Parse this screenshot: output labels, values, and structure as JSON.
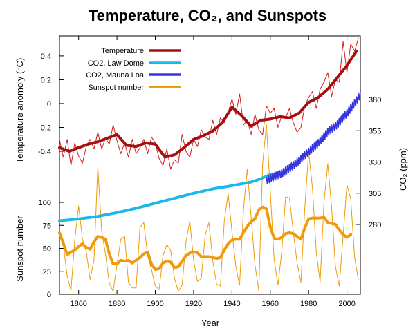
{
  "chart_data": {
    "type": "line",
    "title": "Temperature, CO₂, and Sunspots",
    "xlabel": "Year",
    "xlim": [
      1850,
      2007
    ],
    "x_ticks": [
      1860,
      1880,
      1900,
      1920,
      1940,
      1960,
      1980,
      2000
    ],
    "y_left_temperature": {
      "label": "Temperature anomoly (°C)",
      "lim": [
        -0.62,
        0.55
      ],
      "ticks": [
        "-0.4",
        "-0.2",
        "0",
        "0.2",
        "0.4"
      ]
    },
    "y_left_sunspot": {
      "label": "Sunspot number",
      "lim": [
        0,
        100
      ],
      "ticks": [
        "0",
        "25",
        "50",
        "75",
        "100"
      ]
    },
    "y_right_co2": {
      "label": "CO₂ (ppm)",
      "lim": [
        265,
        390
      ],
      "ticks": [
        "280",
        "305",
        "330",
        "355",
        "380"
      ]
    },
    "legend": {
      "placement": "top-left",
      "entries": [
        "Temperature",
        "CO2, Law Dome",
        "CO2, Mauna Loa",
        "Sunspot number"
      ]
    },
    "colors": {
      "temperature": "#a50f0f",
      "temperature_annual": "#d41a1a",
      "co2_law_dome": "#1ab8e8",
      "co2_mauna_loa": "#3535e0",
      "sunspot": "#f09a0a"
    },
    "series": [
      {
        "name": "Temperature",
        "style": "smoothed",
        "x": [
          1850,
          1855,
          1860,
          1865,
          1870,
          1875,
          1880,
          1885,
          1890,
          1895,
          1900,
          1905,
          1910,
          1915,
          1920,
          1925,
          1930,
          1935,
          1940,
          1945,
          1950,
          1955,
          1960,
          1965,
          1970,
          1975,
          1980,
          1985,
          1990,
          1995,
          2000,
          2005
        ],
        "values": [
          -0.37,
          -0.4,
          -0.37,
          -0.34,
          -0.32,
          -0.29,
          -0.26,
          -0.35,
          -0.36,
          -0.33,
          -0.34,
          -0.45,
          -0.43,
          -0.37,
          -0.3,
          -0.27,
          -0.23,
          -0.16,
          -0.03,
          -0.1,
          -0.19,
          -0.14,
          -0.13,
          -0.11,
          -0.12,
          -0.08,
          0.01,
          0.05,
          0.12,
          0.22,
          0.32,
          0.44
        ]
      },
      {
        "name": "Temperature annual",
        "style": "annual",
        "x": [
          1850,
          1852,
          1854,
          1856,
          1858,
          1860,
          1862,
          1864,
          1866,
          1868,
          1870,
          1872,
          1874,
          1876,
          1878,
          1880,
          1882,
          1884,
          1886,
          1888,
          1890,
          1892,
          1894,
          1896,
          1898,
          1900,
          1902,
          1904,
          1906,
          1908,
          1910,
          1912,
          1914,
          1916,
          1918,
          1920,
          1922,
          1924,
          1926,
          1928,
          1930,
          1932,
          1934,
          1936,
          1938,
          1940,
          1942,
          1944,
          1946,
          1948,
          1950,
          1952,
          1954,
          1956,
          1958,
          1960,
          1962,
          1964,
          1966,
          1968,
          1970,
          1972,
          1974,
          1976,
          1978,
          1980,
          1982,
          1984,
          1986,
          1988,
          1990,
          1992,
          1994,
          1996,
          1998,
          2000,
          2002,
          2004,
          2006
        ],
        "values": [
          -0.3,
          -0.45,
          -0.3,
          -0.52,
          -0.33,
          -0.44,
          -0.5,
          -0.36,
          -0.3,
          -0.38,
          -0.24,
          -0.38,
          -0.29,
          -0.34,
          -0.18,
          -0.31,
          -0.42,
          -0.33,
          -0.45,
          -0.3,
          -0.42,
          -0.37,
          -0.3,
          -0.42,
          -0.28,
          -0.33,
          -0.46,
          -0.52,
          -0.38,
          -0.55,
          -0.47,
          -0.5,
          -0.26,
          -0.4,
          -0.45,
          -0.3,
          -0.36,
          -0.22,
          -0.28,
          -0.3,
          -0.14,
          -0.26,
          -0.12,
          -0.16,
          -0.08,
          0.04,
          -0.09,
          0.08,
          -0.18,
          -0.14,
          -0.26,
          -0.09,
          -0.22,
          -0.26,
          -0.02,
          -0.08,
          -0.04,
          -0.2,
          -0.1,
          -0.12,
          -0.04,
          -0.16,
          -0.24,
          -0.2,
          -0.02,
          0.05,
          0.1,
          -0.04,
          0.12,
          0.18,
          0.26,
          0.06,
          0.2,
          0.18,
          0.52,
          0.26,
          0.5,
          0.44,
          0.55
        ]
      },
      {
        "name": "CO2, Law Dome",
        "axis": "co2",
        "x": [
          1850,
          1860,
          1870,
          1880,
          1890,
          1900,
          1910,
          1920,
          1930,
          1940,
          1950,
          1955,
          1960
        ],
        "values": [
          283,
          284.5,
          286.5,
          289.5,
          293,
          297,
          301,
          305,
          308.5,
          311,
          314,
          316.5,
          320
        ]
      },
      {
        "name": "CO2, Mauna Loa",
        "axis": "co2",
        "x": [
          1958,
          1960,
          1965,
          1970,
          1975,
          1980,
          1985,
          1990,
          1995,
          2000,
          2005,
          2007
        ],
        "values": [
          315,
          317,
          320,
          325,
          331,
          338,
          345,
          354,
          360,
          369,
          379,
          384
        ]
      },
      {
        "name": "Sunspot number",
        "axis": "sunspot",
        "style": "smoothed",
        "x": [
          1850,
          1852,
          1854,
          1856,
          1858,
          1860,
          1862,
          1864,
          1866,
          1868,
          1870,
          1872,
          1874,
          1876,
          1878,
          1880,
          1882,
          1884,
          1886,
          1888,
          1890,
          1892,
          1894,
          1896,
          1898,
          1900,
          1902,
          1904,
          1906,
          1908,
          1910,
          1912,
          1914,
          1916,
          1918,
          1920,
          1922,
          1924,
          1926,
          1928,
          1930,
          1932,
          1934,
          1936,
          1938,
          1940,
          1942,
          1944,
          1946,
          1948,
          1950,
          1952,
          1954,
          1956,
          1958,
          1960,
          1962,
          1964,
          1966,
          1968,
          1970,
          1972,
          1974,
          1976,
          1978,
          1980,
          1982,
          1984,
          1986,
          1988,
          1990,
          1992,
          1994,
          1996,
          1998,
          2000,
          2002
        ],
        "values": [
          67,
          56,
          43,
          46,
          48,
          52,
          55,
          51,
          49,
          57,
          63,
          62,
          60,
          44,
          33,
          33,
          37,
          36,
          37,
          34,
          37,
          40,
          44,
          46,
          33,
          27,
          28,
          34,
          36,
          35,
          29,
          30,
          36,
          42,
          45,
          46,
          45,
          41,
          41,
          41,
          40,
          39,
          40,
          48,
          55,
          59,
          60,
          60,
          67,
          74,
          79,
          82,
          92,
          95,
          93,
          73,
          61,
          60,
          62,
          66,
          67,
          66,
          63,
          60,
          72,
          82,
          83,
          83,
          83,
          84,
          78,
          77,
          76,
          70,
          65,
          62,
          65
        ]
      },
      {
        "name": "Sunspot annual",
        "axis": "sunspot",
        "style": "annual",
        "x": [
          1850,
          1852,
          1854,
          1856,
          1858,
          1860,
          1862,
          1864,
          1866,
          1868,
          1870,
          1872,
          1874,
          1876,
          1878,
          1880,
          1882,
          1884,
          1886,
          1888,
          1890,
          1892,
          1894,
          1896,
          1898,
          1900,
          1902,
          1904,
          1906,
          1908,
          1910,
          1912,
          1914,
          1916,
          1918,
          1920,
          1922,
          1924,
          1926,
          1928,
          1930,
          1932,
          1934,
          1936,
          1938,
          1940,
          1942,
          1944,
          1946,
          1948,
          1950,
          1952,
          1954,
          1956,
          1958,
          1960,
          1962,
          1964,
          1966,
          1968,
          1970,
          1972,
          1974,
          1976,
          1978,
          1980,
          1982,
          1984,
          1986,
          1988,
          1990,
          1992,
          1994,
          1996,
          1998,
          2000,
          2002,
          2004,
          2006
        ],
        "values": [
          66,
          54,
          20,
          4,
          60,
          96,
          60,
          46,
          16,
          37,
          139,
          69,
          44,
          12,
          3,
          32,
          60,
          63,
          13,
          7,
          7,
          73,
          78,
          42,
          27,
          9,
          5,
          42,
          54,
          48,
          18,
          3,
          10,
          57,
          80,
          37,
          14,
          17,
          64,
          78,
          36,
          11,
          9,
          80,
          110,
          68,
          31,
          10,
          92,
          136,
          84,
          32,
          4,
          142,
          185,
          112,
          38,
          10,
          47,
          106,
          105,
          68,
          34,
          13,
          93,
          155,
          116,
          46,
          13,
          100,
          142,
          95,
          30,
          9,
          64,
          119,
          104,
          40,
          15
        ]
      }
    ]
  }
}
